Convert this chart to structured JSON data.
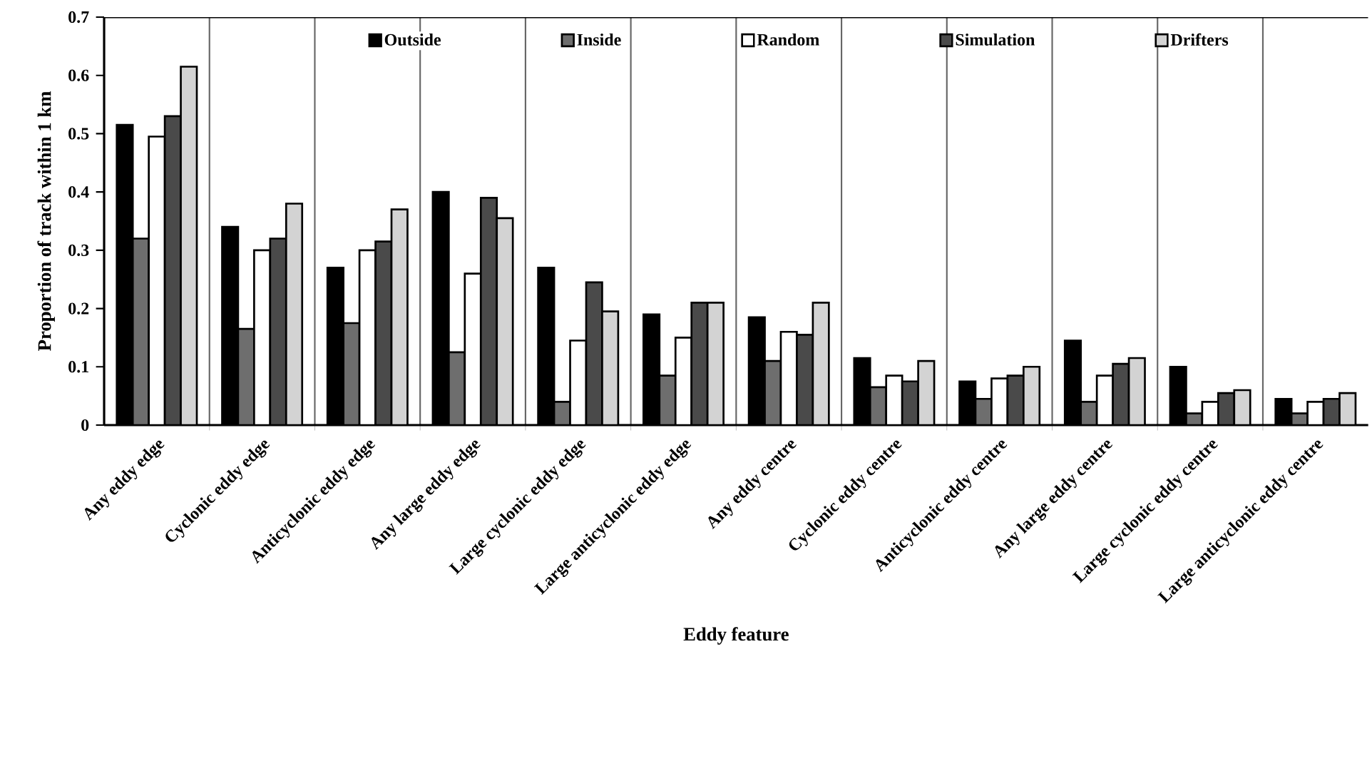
{
  "chart_data": {
    "type": "bar",
    "xlabel": "Eddy feature",
    "ylabel": "Proportion of track within 1 km",
    "categories": [
      "Any eddy edge",
      "Cyclonic eddy edge",
      "Anticyclonic eddy edge",
      "Any large eddy edge",
      "Large cyclonic eddy edge",
      "Large anticyclonic eddy edge",
      "Any eddy centre",
      "Cyclonic eddy centre",
      "Anticyclonic eddy centre",
      "Any large eddy centre",
      "Large cyclonic eddy centre",
      "Large anticyclonic eddy centre"
    ],
    "series": [
      {
        "name": "Outside",
        "color": "#000000",
        "values": [
          0.515,
          0.34,
          0.27,
          0.4,
          0.27,
          0.19,
          0.185,
          0.115,
          0.075,
          0.145,
          0.1,
          0.045
        ]
      },
      {
        "name": "Inside",
        "color": "#6e6e6e",
        "values": [
          0.32,
          0.165,
          0.175,
          0.125,
          0.04,
          0.085,
          0.11,
          0.065,
          0.045,
          0.04,
          0.02,
          0.02
        ]
      },
      {
        "name": "Random",
        "color": "#ffffff",
        "values": [
          0.495,
          0.3,
          0.3,
          0.26,
          0.145,
          0.15,
          0.16,
          0.085,
          0.08,
          0.085,
          0.04,
          0.04
        ]
      },
      {
        "name": "Simulation",
        "color": "#4a4a4a",
        "values": [
          0.53,
          0.32,
          0.315,
          0.39,
          0.245,
          0.21,
          0.155,
          0.075,
          0.085,
          0.105,
          0.055,
          0.045
        ]
      },
      {
        "name": "Drifters",
        "color": "#d3d3d3",
        "values": [
          0.615,
          0.38,
          0.37,
          0.355,
          0.195,
          0.21,
          0.21,
          0.11,
          0.1,
          0.115,
          0.06,
          0.055
        ]
      }
    ],
    "ylim": [
      0,
      0.7
    ],
    "yticks": [
      0,
      0.1,
      0.2,
      0.3,
      0.4,
      0.5,
      0.6,
      0.7
    ],
    "grid": "x",
    "legend": "top"
  }
}
